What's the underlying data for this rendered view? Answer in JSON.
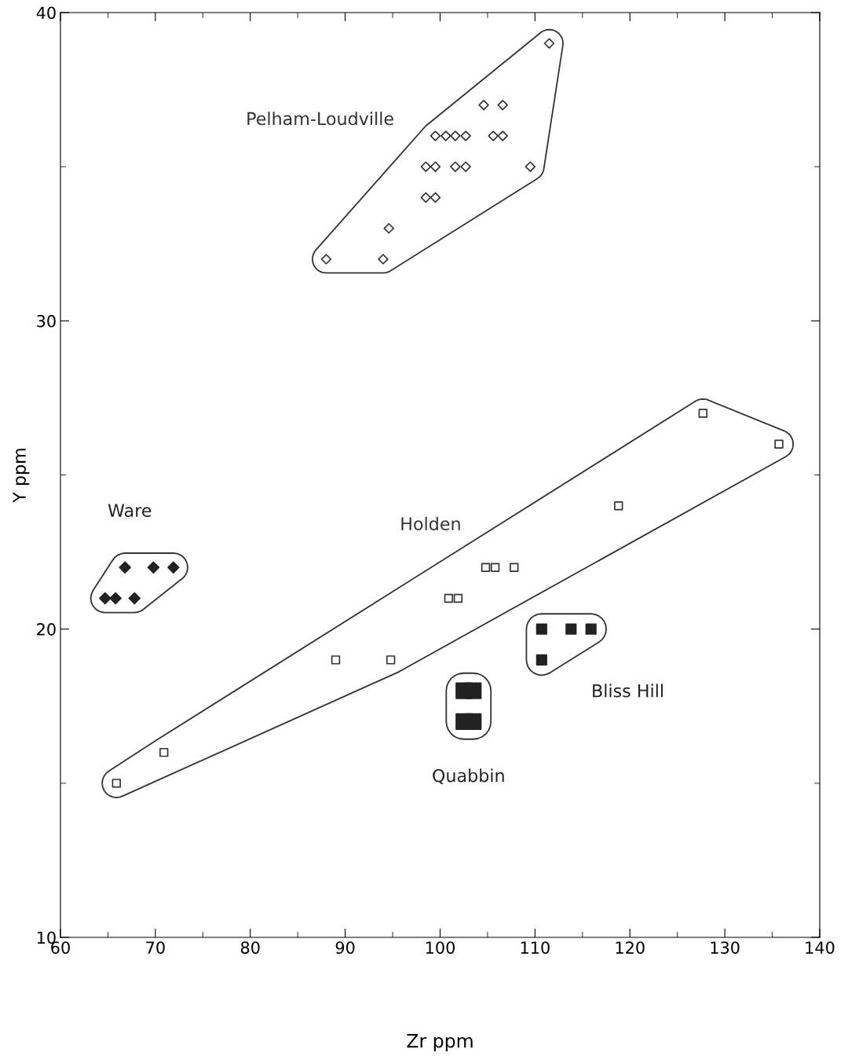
{
  "chart_data": {
    "type": "scatter",
    "xlabel": "Zr ppm",
    "ylabel": "Y ppm",
    "xlim": [
      60,
      140
    ],
    "xticks": [
      60,
      70,
      80,
      90,
      100,
      110,
      120,
      130,
      140
    ],
    "ylim": [
      10,
      40
    ],
    "yticks": [
      10,
      20,
      30,
      40
    ],
    "grid": false,
    "legend": false,
    "series": [
      {
        "name": "Pelham-Loudville",
        "color": "#333333",
        "marker": "diamond",
        "x": [
          88,
          94,
          94.6,
          98.5,
          99.5,
          98.5,
          99.5,
          101.6,
          102.7,
          99.5,
          100.6,
          101.6,
          102.7,
          105.6,
          106.6,
          104.6,
          106.6,
          109.5,
          111.5
        ],
        "values": [
          32,
          32,
          33,
          34,
          34,
          35,
          35,
          35,
          35,
          36,
          36,
          36,
          36,
          36,
          36,
          37,
          37,
          35,
          39
        ]
      },
      {
        "name": "Holden",
        "color": "#333333",
        "marker": "square",
        "x": [
          65.9,
          70.9,
          89,
          94.8,
          100.9,
          101.9,
          104.8,
          105.8,
          107.8,
          118.8,
          127.7,
          135.7
        ],
        "values": [
          15,
          16,
          19,
          19,
          21,
          21,
          22,
          22,
          22,
          24,
          27,
          26
        ]
      },
      {
        "name": "Ware",
        "color": "#222222",
        "marker": "diamond",
        "x": [
          64.7,
          65.8,
          67.8,
          66.8,
          69.8,
          71.9
        ],
        "values": [
          21,
          21,
          21,
          22,
          22,
          22
        ]
      },
      {
        "name": "Bliss Hill",
        "color": "#222222",
        "marker": "square",
        "x": [
          110.7,
          113.8,
          115.9,
          110.7
        ],
        "values": [
          20,
          20,
          20,
          19
        ]
      },
      {
        "name": "Quabbin",
        "color": "#222222",
        "marker": "square",
        "x": [
          102.5,
          103.5,
          102.5,
          103.5
        ],
        "values": [
          18,
          18,
          17,
          17
        ]
      }
    ]
  }
}
